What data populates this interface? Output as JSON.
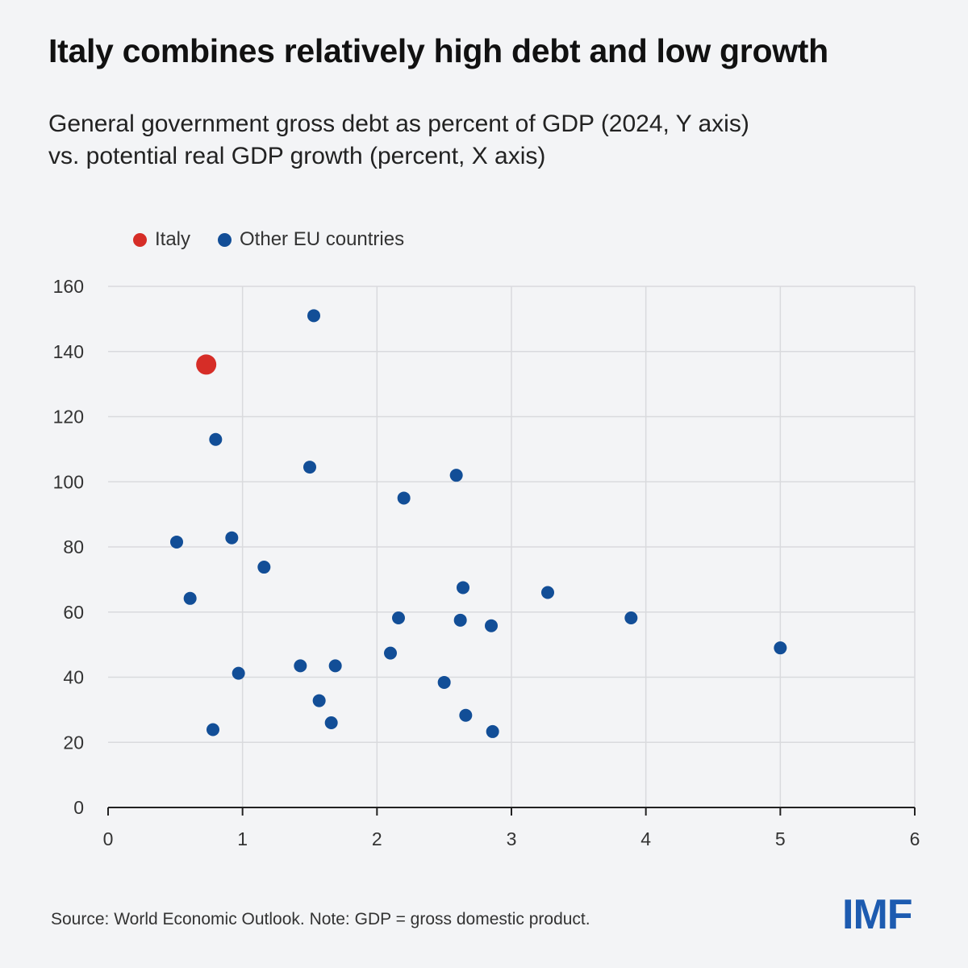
{
  "title": "Italy combines relatively high debt and low growth",
  "subtitle_lines": [
    "General government gross debt as percent of GDP (2024, Y axis)",
    "vs. potential real GDP growth (percent, X axis)"
  ],
  "legend": [
    {
      "label": "Italy",
      "color": "#d62d27"
    },
    {
      "label": "Other EU countries",
      "color": "#124e97"
    }
  ],
  "footer": "Source: World Economic Outlook. Note: GDP = gross domestic product.",
  "logo_text": "IMF",
  "chart_data": {
    "type": "scatter",
    "xlabel": "",
    "ylabel": "",
    "xlim": [
      0,
      6
    ],
    "ylim": [
      0,
      160
    ],
    "x_ticks": [
      0,
      1,
      2,
      3,
      4,
      5,
      6
    ],
    "y_ticks": [
      0,
      20,
      40,
      60,
      80,
      100,
      120,
      140,
      160
    ],
    "grid": true,
    "legend_position": "top-left",
    "series": [
      {
        "name": "Italy",
        "color": "#d62d27",
        "highlight": true,
        "points": [
          [
            0.73,
            136
          ]
        ]
      },
      {
        "name": "Other EU countries",
        "color": "#124e97",
        "points": [
          [
            1.53,
            151
          ],
          [
            0.8,
            113
          ],
          [
            1.5,
            104.5
          ],
          [
            2.59,
            102
          ],
          [
            2.2,
            95
          ],
          [
            0.51,
            81.5
          ],
          [
            0.92,
            82.8
          ],
          [
            1.16,
            73.8
          ],
          [
            0.61,
            64.2
          ],
          [
            2.64,
            67.5
          ],
          [
            3.27,
            66
          ],
          [
            2.16,
            58.2
          ],
          [
            2.62,
            57.5
          ],
          [
            2.85,
            55.8
          ],
          [
            3.89,
            58.2
          ],
          [
            5.0,
            49
          ],
          [
            2.1,
            47.4
          ],
          [
            0.97,
            41.2
          ],
          [
            1.43,
            43.5
          ],
          [
            1.69,
            43.5
          ],
          [
            2.5,
            38.4
          ],
          [
            1.57,
            32.8
          ],
          [
            1.66,
            26
          ],
          [
            2.66,
            28.3
          ],
          [
            2.86,
            23.3
          ],
          [
            0.78,
            23.9
          ]
        ]
      }
    ]
  }
}
